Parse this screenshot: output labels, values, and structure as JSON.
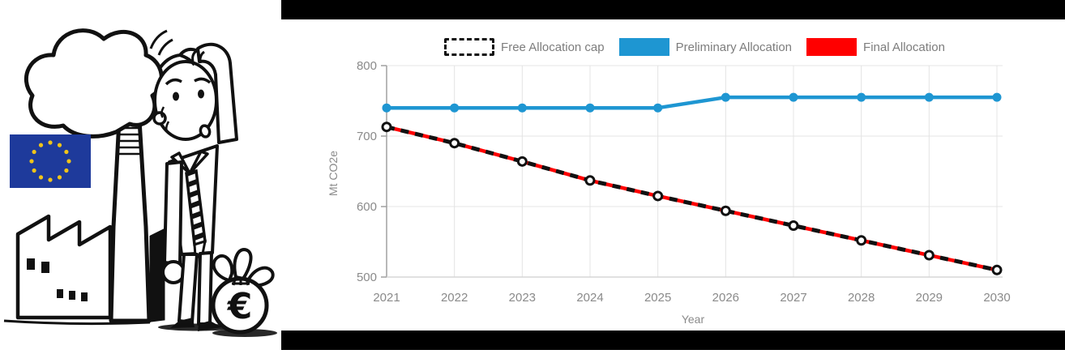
{
  "illustration": {
    "description": "Black-and-white cartoon: worried businessman scratching his head beside a smoking factory, with an EU flag and a money bag",
    "euro_symbol": "€",
    "flag_color": "#1e3a9b",
    "star_color": "#f0c419"
  },
  "chart": {
    "frame_color": "#000000",
    "text_color": "#8a8a8a",
    "grid_color": "#e4e4e4",
    "legend": [
      {
        "label": "Free Allocation cap",
        "swatch": "dashed"
      },
      {
        "label": "Preliminary Allocation",
        "color": "#1e96d2"
      },
      {
        "label": "Final Allocation",
        "color": "#ff0000"
      }
    ]
  },
  "chart_data": {
    "type": "line",
    "title": "",
    "x": [
      2021,
      2022,
      2023,
      2024,
      2025,
      2026,
      2027,
      2028,
      2029,
      2030
    ],
    "series": [
      {
        "name": "Free Allocation cap",
        "color": "#111111",
        "dash": "10 8",
        "marker": "none",
        "values": [
          713,
          690,
          664,
          637,
          615,
          594,
          573,
          552,
          531,
          510
        ]
      },
      {
        "name": "Preliminary Allocation",
        "color": "#1e96d2",
        "dash": null,
        "marker": "filled",
        "values": [
          740,
          740,
          740,
          740,
          740,
          755,
          755,
          755,
          755,
          755
        ]
      },
      {
        "name": "Final Allocation",
        "color": "#ff0000",
        "dash": null,
        "marker": "hollow",
        "values": [
          713,
          690,
          664,
          637,
          615,
          594,
          573,
          552,
          531,
          510
        ]
      }
    ],
    "xlabel": "Year",
    "ylabel": "Mt CO2e",
    "ylim": [
      500,
      800
    ],
    "yticks": [
      500,
      600,
      700,
      800
    ],
    "grid": true,
    "legend_position": "top"
  }
}
